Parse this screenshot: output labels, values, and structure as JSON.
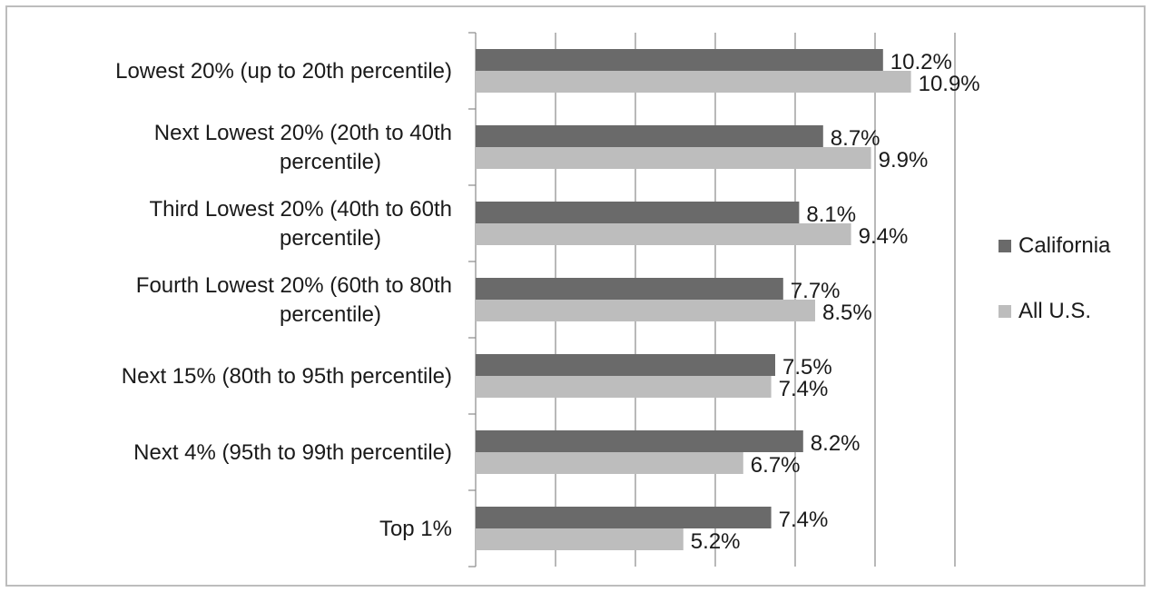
{
  "chart_data": {
    "type": "bar",
    "orientation": "horizontal",
    "categories": [
      [
        "Lowest 20% (up to 20th percentile)"
      ],
      [
        "Next Lowest 20% (20th to 40th",
        "percentile)"
      ],
      [
        "Third Lowest 20% (40th to 60th",
        "percentile)"
      ],
      [
        "Fourth Lowest 20% (60th to 80th",
        "percentile)"
      ],
      [
        "Next 15% (80th to 95th percentile)"
      ],
      [
        "Next 4% (95th to 99th percentile)"
      ],
      [
        "Top 1%"
      ]
    ],
    "series": [
      {
        "name": "California",
        "color": "#6a6a6a",
        "values": [
          10.2,
          8.7,
          8.1,
          7.7,
          7.5,
          8.2,
          7.4
        ],
        "labels": [
          "10.2%",
          "8.7%",
          "8.1%",
          "7.7%",
          "7.5%",
          "8.2%",
          "7.4%"
        ]
      },
      {
        "name": "All U.S.",
        "color": "#bdbdbd",
        "values": [
          10.9,
          9.9,
          9.4,
          8.5,
          7.4,
          6.7,
          5.2
        ],
        "labels": [
          "10.9%",
          "9.9%",
          "9.4%",
          "8.5%",
          "7.4%",
          "6.7%",
          "5.2%"
        ]
      }
    ],
    "xlim": [
      0,
      12
    ],
    "x_gridline_step": 2,
    "grid": true,
    "legend": "right",
    "title": "",
    "xlabel": "",
    "ylabel": ""
  }
}
